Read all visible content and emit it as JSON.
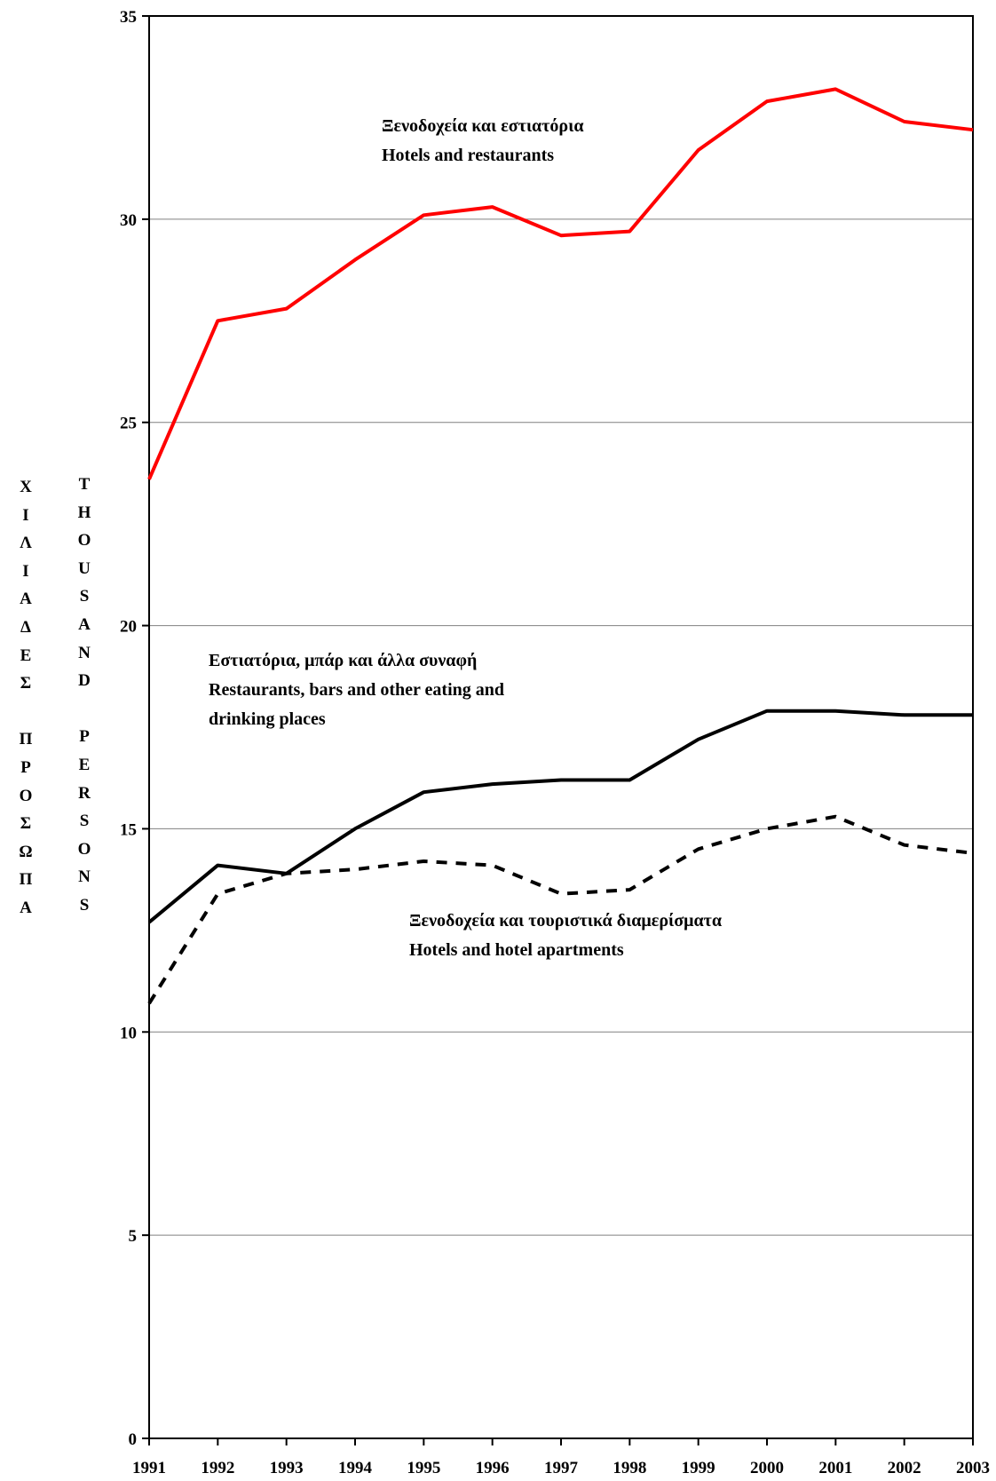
{
  "chart_data": {
    "type": "line",
    "x": [
      1991,
      1992,
      1993,
      1994,
      1995,
      1996,
      1997,
      1998,
      1999,
      2000,
      2001,
      2002,
      2003
    ],
    "x_tick_labels": [
      "1991",
      "1992",
      "1993",
      "1994",
      "1995",
      "1996",
      "1997",
      "1998",
      "1999",
      "2000",
      "2001",
      "2002",
      "2003"
    ],
    "y_ticks": [
      0,
      5,
      10,
      15,
      20,
      25,
      30,
      35
    ],
    "ylim": [
      0,
      35
    ],
    "grid": true,
    "ylabel_greek": [
      "Χ",
      "Ι",
      "Λ",
      "Ι",
      "Α",
      "Δ",
      "Ε",
      "Σ",
      "",
      "Π",
      "Ρ",
      "Ο",
      "Σ",
      "Ω",
      "Π",
      "Α"
    ],
    "ylabel_english": [
      "T",
      "H",
      "O",
      "U",
      "S",
      "A",
      "N",
      "D",
      "",
      "P",
      "E",
      "R",
      "S",
      "O",
      "N",
      "S"
    ],
    "series": [
      {
        "name": "Hotels and restaurants",
        "label_lines": [
          "Ξενοδοχεία και εστιατόρια",
          "Hotels and restaurants"
        ],
        "color": "#ff0000",
        "style": "solid",
        "values": [
          23.6,
          27.5,
          27.8,
          29.0,
          30.1,
          30.3,
          29.6,
          29.7,
          31.7,
          32.9,
          33.2,
          32.4,
          32.2
        ]
      },
      {
        "name": "Restaurants, bars and other eating and drinking places",
        "label_lines": [
          "Εστιατόρια, μπάρ και άλλα συναφή",
          "Restaurants, bars and other eating and",
          "drinking places"
        ],
        "color": "#000000",
        "style": "solid",
        "values": [
          12.7,
          14.1,
          13.9,
          15.0,
          15.9,
          16.1,
          16.2,
          16.2,
          17.2,
          17.9,
          17.9,
          17.8,
          17.8
        ]
      },
      {
        "name": "Hotels and hotel apartments",
        "label_lines": [
          "Ξενοδοχεία και τουριστικά διαμερίσματα",
          "Hotels and hotel apartments"
        ],
        "color": "#000000",
        "style": "dashed",
        "values": [
          10.7,
          13.4,
          13.9,
          14.0,
          14.2,
          14.1,
          13.4,
          13.5,
          14.5,
          15.0,
          15.3,
          14.6,
          14.4
        ]
      }
    ]
  }
}
